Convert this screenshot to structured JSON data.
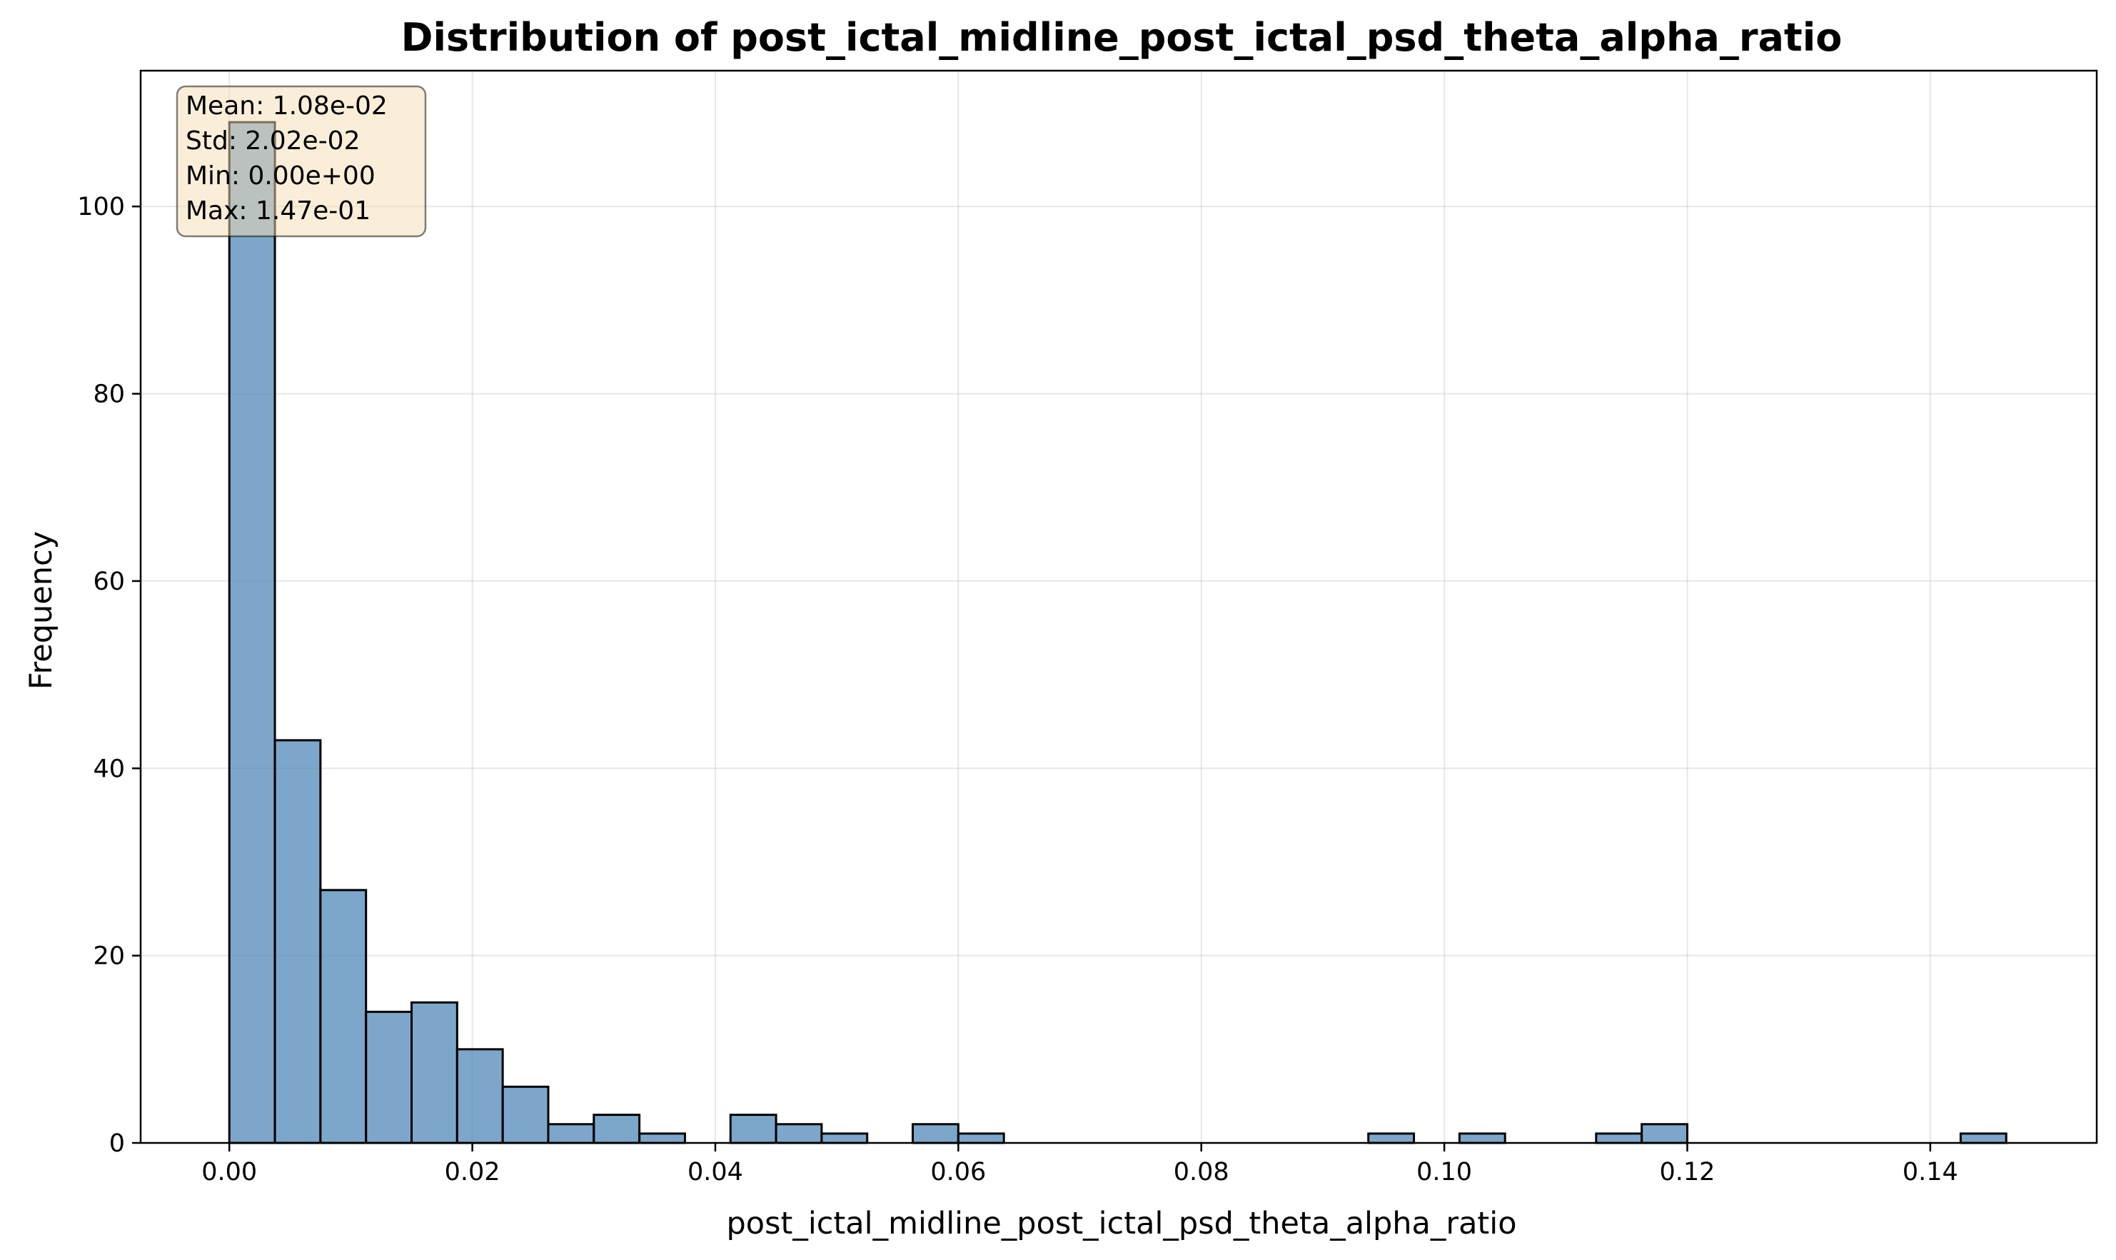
{
  "chart_data": {
    "type": "bar",
    "title": "Distribution of post_ictal_midline_post_ictal_psd_theta_alpha_ratio",
    "xlabel": "post_ictal_midline_post_ictal_psd_theta_alpha_ratio",
    "ylabel": "Frequency",
    "xlim": [
      -0.0073,
      0.1537
    ],
    "ylim": [
      0,
      114.5
    ],
    "grid": true,
    "bar_color": "#4682b4",
    "bar_edge_color": "#000000",
    "bin_edges": [
      0.0,
      0.00375,
      0.0075,
      0.01125,
      0.015,
      0.01875,
      0.0225,
      0.02625,
      0.03,
      0.03375,
      0.0375,
      0.04125,
      0.045,
      0.04875,
      0.0525,
      0.05625,
      0.06,
      0.06375,
      0.0675,
      0.07125,
      0.075,
      0.07875,
      0.0825,
      0.08625,
      0.09,
      0.09375,
      0.0975,
      0.10125,
      0.105,
      0.10875,
      0.1125,
      0.11625,
      0.12,
      0.12375,
      0.1275,
      0.13125,
      0.135,
      0.13875,
      0.1425,
      0.14625
    ],
    "counts": [
      109,
      43,
      27,
      14,
      15,
      10,
      6,
      2,
      3,
      1,
      0,
      3,
      2,
      1,
      0,
      2,
      1,
      0,
      0,
      0,
      0,
      0,
      0,
      0,
      0,
      1,
      0,
      1,
      0,
      0,
      1,
      2,
      0,
      0,
      0,
      0,
      0,
      0,
      1
    ],
    "x_ticks": [
      0.0,
      0.02,
      0.04,
      0.06,
      0.08,
      0.1,
      0.12,
      0.14
    ],
    "x_tick_labels": [
      "0.00",
      "0.02",
      "0.04",
      "0.06",
      "0.08",
      "0.10",
      "0.12",
      "0.14"
    ],
    "y_ticks": [
      0,
      20,
      40,
      60,
      80,
      100
    ],
    "y_tick_labels": [
      "0",
      "20",
      "40",
      "60",
      "80",
      "100"
    ],
    "stats": {
      "mean": "Mean: 1.08e-02",
      "std": "Std: 2.02e-02",
      "min": "Min: 0.00e+00",
      "max": "Max: 1.47e-01"
    },
    "stats_box_fill": "#f5deb3",
    "stats_box_position": "top-left"
  }
}
